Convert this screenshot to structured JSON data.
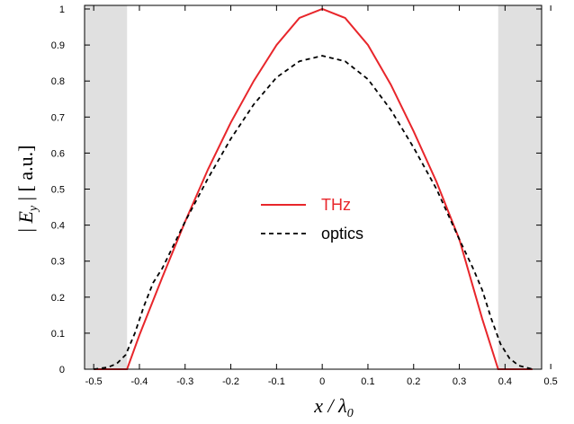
{
  "chart_data": {
    "type": "line",
    "xlabel": "x / λ0",
    "ylabel": "| Ey |   [ a.u.]",
    "xlim": [
      -0.52,
      0.48
    ],
    "ylim": [
      0,
      1.01
    ],
    "x_ticks": [
      -0.5,
      -0.4,
      -0.3,
      -0.2,
      -0.1,
      0,
      0.1,
      0.2,
      0.3,
      0.4,
      0.5
    ],
    "x_tick_labels": [
      "-0.5",
      "-0.4",
      "-0.3",
      "-0.2",
      "-0.1",
      "0",
      "0.1",
      "0.2",
      "0.3",
      "0.4",
      "0.5"
    ],
    "y_ticks": [
      0,
      0.1,
      0.2,
      0.3,
      0.4,
      0.5,
      0.6,
      0.7,
      0.8,
      0.9,
      1
    ],
    "y_tick_labels": [
      "0",
      "0.1",
      "0.2",
      "0.3",
      "0.4",
      "0.5",
      "0.6",
      "0.7",
      "0.8",
      "0.9",
      "1"
    ],
    "shaded_regions": [
      {
        "x0": -0.52,
        "x1": -0.427,
        "color": "#e0e0e0"
      },
      {
        "x0": 0.385,
        "x1": 0.48,
        "color": "#e0e0e0"
      }
    ],
    "grid": false,
    "legend_position": "center",
    "series": [
      {
        "name": "THz",
        "color": "#e8262b",
        "dash": "solid",
        "x": [
          -0.5,
          -0.427,
          -0.4,
          -0.35,
          -0.3,
          -0.25,
          -0.2,
          -0.15,
          -0.1,
          -0.05,
          0,
          0.05,
          0.1,
          0.15,
          0.2,
          0.25,
          0.3,
          0.35,
          0.385,
          0.42,
          0.46
        ],
        "y": [
          0,
          0,
          0.095,
          0.255,
          0.41,
          0.555,
          0.685,
          0.8,
          0.9,
          0.975,
          1.0,
          0.975,
          0.9,
          0.79,
          0.66,
          0.52,
          0.36,
          0.14,
          0,
          0,
          0
        ]
      },
      {
        "name": "optics",
        "color": "#000000",
        "dash": "dashed",
        "x": [
          -0.5,
          -0.47,
          -0.45,
          -0.43,
          -0.41,
          -0.39,
          -0.37,
          -0.35,
          -0.3,
          -0.25,
          -0.2,
          -0.15,
          -0.1,
          -0.05,
          0,
          0.05,
          0.1,
          0.15,
          0.2,
          0.25,
          0.3,
          0.33,
          0.35,
          0.37,
          0.39,
          0.41,
          0.43,
          0.46
        ],
        "y": [
          0,
          0.005,
          0.015,
          0.04,
          0.1,
          0.175,
          0.24,
          0.28,
          0.41,
          0.53,
          0.64,
          0.735,
          0.81,
          0.855,
          0.87,
          0.855,
          0.805,
          0.72,
          0.615,
          0.5,
          0.36,
          0.28,
          0.22,
          0.14,
          0.07,
          0.03,
          0.01,
          0
        ]
      }
    ]
  }
}
